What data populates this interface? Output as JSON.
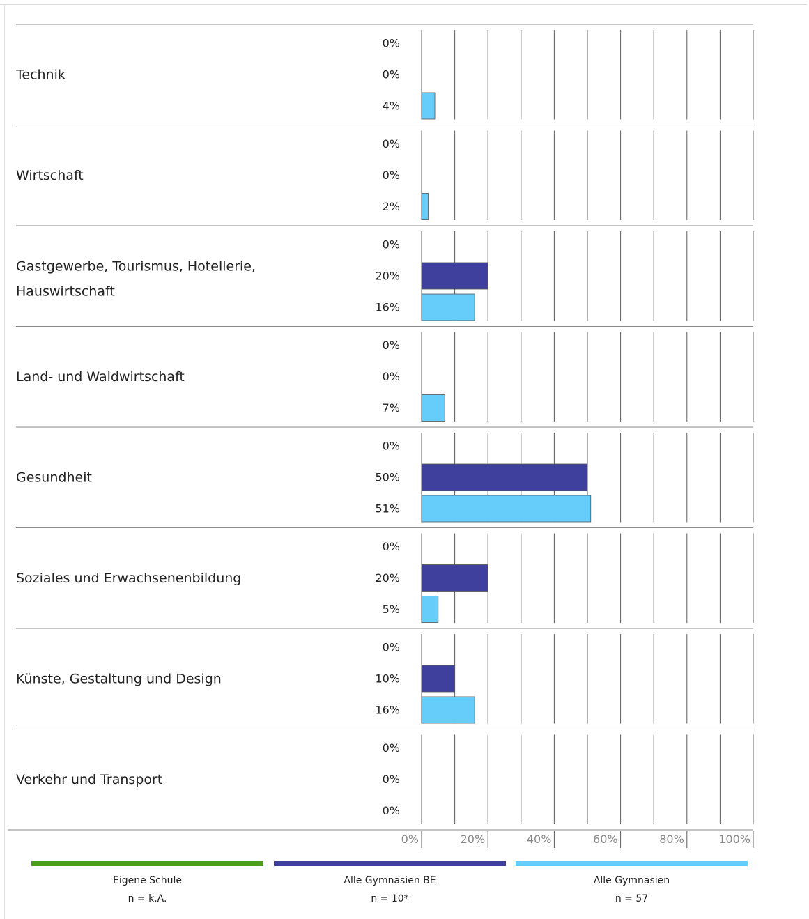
{
  "chart_data": {
    "type": "bar",
    "orientation": "horizontal",
    "categories": [
      "Technik",
      "Wirtschaft",
      "Gastgewerbe, Tourismus, Hotellerie, Hauswirtschaft",
      "Land- und Waldwirtschaft",
      "Gesundheit",
      "Soziales und Erwachsenenbildung",
      "Künste, Gestaltung und Design",
      "Verkehr und Transport"
    ],
    "series": [
      {
        "name": "Eigene Schule",
        "n_label": "n = k.A.",
        "color": "#4a9e1c",
        "values": [
          0,
          0,
          0,
          0,
          0,
          0,
          0,
          0
        ],
        "labels": [
          "0%",
          "0%",
          "0%",
          "0%",
          "0%",
          "0%",
          "0%",
          "0%"
        ]
      },
      {
        "name": "Alle Gymnasien BE",
        "n_label": "n = 10*",
        "color": "#3f3f9e",
        "values": [
          0,
          0,
          20,
          0,
          50,
          20,
          10,
          0
        ],
        "labels": [
          "0%",
          "0%",
          "20%",
          "0%",
          "50%",
          "20%",
          "10%",
          "0%"
        ]
      },
      {
        "name": "Alle Gymnasien",
        "n_label": "n = 57",
        "color": "#66ccfa",
        "values": [
          4,
          2,
          16,
          7,
          51,
          5,
          16,
          0
        ],
        "labels": [
          "4%",
          "2%",
          "16%",
          "7%",
          "51%",
          "5%",
          "16%",
          "0%"
        ]
      }
    ],
    "xlim": [
      0,
      100
    ],
    "x_ticks": [
      0,
      20,
      40,
      60,
      80,
      100
    ],
    "x_tick_labels": [
      "0%",
      "20%",
      "40%",
      "60%",
      "80%",
      "100%"
    ],
    "grid": true,
    "legend_position": "bottom"
  }
}
